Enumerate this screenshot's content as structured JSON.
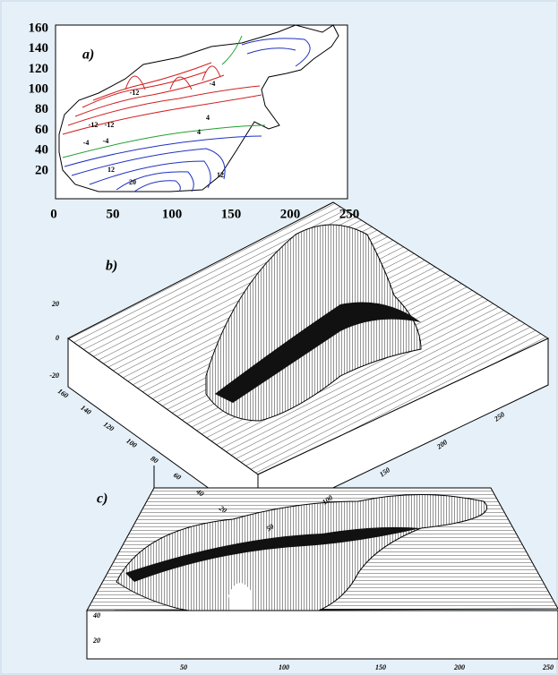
{
  "panels": [
    {
      "label": "a)",
      "yticks": [
        160,
        140,
        120,
        100,
        80,
        60,
        40,
        20
      ],
      "xticks": [
        0,
        50,
        100,
        150,
        200,
        250
      ],
      "contour_labels": [
        "-12",
        "-12",
        "-12",
        "-4",
        "-4",
        "-4",
        "4",
        "4",
        "12",
        "20",
        "12"
      ]
    },
    {
      "label": "b)",
      "zticks": [
        20,
        0,
        -20
      ],
      "yticks": [
        160,
        140,
        120,
        100,
        80,
        60,
        40,
        20
      ],
      "xticks": [
        50,
        100,
        150,
        200,
        250
      ]
    },
    {
      "label": "c)",
      "yticks": [
        40,
        20
      ],
      "xticks": [
        50,
        100,
        150,
        200,
        250
      ]
    }
  ]
}
